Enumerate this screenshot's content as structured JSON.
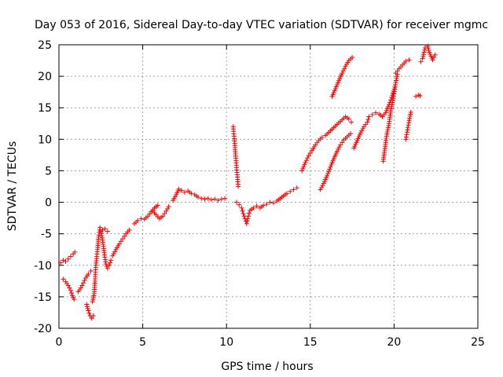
{
  "chart_data": {
    "type": "scatter",
    "title": "Day 053 of 2016, Sidereal Day-to-day VTEC variation (SDTVAR) for receiver mgmc",
    "xlabel": "GPS time / hours",
    "ylabel": "SDTVAR / TECUs",
    "xlim": [
      0,
      25
    ],
    "ylim": [
      -20,
      25
    ],
    "xticks": [
      "0",
      "5",
      "10",
      "15",
      "20",
      "25"
    ],
    "yticks": [
      "-20",
      "-15",
      "-10",
      "-5",
      "0",
      "5",
      "10",
      "15",
      "20",
      "25"
    ],
    "grid": true,
    "marker": "+",
    "marker_color": "#ff0000",
    "series": [
      {
        "segments": [
          [
            [
              0.1,
              -9.6
            ],
            [
              0.25,
              -9.2
            ],
            [
              0.4,
              -9.4
            ],
            [
              0.55,
              -9.0
            ],
            [
              0.7,
              -8.6
            ],
            [
              0.85,
              -8.2
            ],
            [
              0.95,
              -7.9
            ]
          ],
          [
            [
              0.25,
              -12.2
            ],
            [
              0.4,
              -12.6
            ],
            [
              0.55,
              -13.2
            ],
            [
              0.7,
              -14.0
            ],
            [
              0.8,
              -14.8
            ],
            [
              0.9,
              -15.4
            ]
          ],
          [
            [
              1.15,
              -14.2
            ],
            [
              1.3,
              -13.6
            ],
            [
              1.45,
              -12.8
            ],
            [
              1.6,
              -12.0
            ],
            [
              1.75,
              -11.4
            ],
            [
              1.9,
              -10.9
            ]
          ],
          [
            [
              1.65,
              -16.2
            ],
            [
              1.75,
              -17.2
            ],
            [
              1.85,
              -18.0
            ],
            [
              1.95,
              -18.4
            ],
            [
              2.05,
              -18.0
            ]
          ],
          [
            [
              2.0,
              -15.8
            ],
            [
              2.1,
              -14.5
            ],
            [
              2.15,
              -12.5
            ],
            [
              2.2,
              -10.0
            ],
            [
              2.3,
              -7.5
            ],
            [
              2.38,
              -5.2
            ],
            [
              2.45,
              -4.0
            ]
          ],
          [
            [
              2.5,
              -4.6
            ],
            [
              2.6,
              -6.0
            ],
            [
              2.7,
              -8.0
            ],
            [
              2.8,
              -9.8
            ],
            [
              2.9,
              -10.5
            ],
            [
              3.0,
              -10.0
            ],
            [
              3.1,
              -9.2
            ]
          ],
          [
            [
              2.6,
              -4.4
            ],
            [
              2.75,
              -4.2
            ],
            [
              2.9,
              -4.6
            ]
          ],
          [
            [
              3.2,
              -8.5
            ],
            [
              3.4,
              -7.5
            ],
            [
              3.6,
              -6.6
            ],
            [
              3.8,
              -5.8
            ],
            [
              4.0,
              -5.0
            ],
            [
              4.2,
              -4.4
            ]
          ],
          [
            [
              4.5,
              -3.4
            ],
            [
              4.7,
              -2.9
            ],
            [
              4.9,
              -2.6
            ],
            [
              5.1,
              -2.7
            ],
            [
              5.3,
              -2.2
            ],
            [
              5.5,
              -1.5
            ],
            [
              5.7,
              -0.9
            ],
            [
              5.9,
              -0.5
            ]
          ],
          [
            [
              5.6,
              -1.4
            ],
            [
              5.8,
              -2.0
            ],
            [
              6.0,
              -2.6
            ],
            [
              6.2,
              -2.2
            ],
            [
              6.4,
              -1.4
            ],
            [
              6.55,
              -0.7
            ]
          ],
          [
            [
              6.8,
              0.3
            ],
            [
              7.0,
              1.2
            ],
            [
              7.15,
              2.1
            ],
            [
              7.3,
              1.9
            ],
            [
              7.5,
              1.6
            ],
            [
              7.7,
              1.8
            ],
            [
              7.9,
              1.4
            ],
            [
              8.1,
              1.2
            ],
            [
              8.3,
              0.8
            ],
            [
              8.5,
              0.6
            ],
            [
              8.7,
              0.5
            ],
            [
              8.9,
              0.6
            ],
            [
              9.1,
              0.4
            ],
            [
              9.3,
              0.5
            ],
            [
              9.5,
              0.3
            ],
            [
              9.7,
              0.5
            ],
            [
              9.9,
              0.6
            ]
          ],
          [
            [
              10.4,
              12.0
            ],
            [
              10.45,
              10.5
            ],
            [
              10.5,
              9.0
            ],
            [
              10.55,
              7.0
            ],
            [
              10.6,
              5.5
            ],
            [
              10.65,
              4.0
            ],
            [
              10.7,
              2.5
            ]
          ],
          [
            [
              10.6,
              0.0
            ],
            [
              10.75,
              -0.4
            ],
            [
              10.9,
              -0.9
            ],
            [
              11.0,
              -1.8
            ],
            [
              11.1,
              -2.6
            ],
            [
              11.2,
              -3.4
            ],
            [
              11.3,
              -2.2
            ],
            [
              11.4,
              -1.3
            ],
            [
              11.6,
              -0.9
            ],
            [
              11.8,
              -0.6
            ],
            [
              12.0,
              -0.9
            ],
            [
              12.2,
              -0.5
            ],
            [
              12.4,
              -0.3
            ]
          ],
          [
            [
              12.6,
              0.0
            ],
            [
              12.8,
              -0.1
            ],
            [
              13.0,
              0.2
            ],
            [
              13.2,
              0.6
            ],
            [
              13.4,
              1.0
            ],
            [
              13.6,
              1.4
            ],
            [
              13.8,
              1.7
            ],
            [
              14.0,
              2.0
            ],
            [
              14.2,
              2.3
            ]
          ],
          [
            [
              14.5,
              5.0
            ],
            [
              14.7,
              6.3
            ],
            [
              14.9,
              7.4
            ],
            [
              15.1,
              8.2
            ],
            [
              15.3,
              9.1
            ],
            [
              15.5,
              9.8
            ],
            [
              15.7,
              10.3
            ],
            [
              15.9,
              10.6
            ],
            [
              16.1,
              11.1
            ],
            [
              16.3,
              11.6
            ],
            [
              16.5,
              12.1
            ],
            [
              16.7,
              12.6
            ],
            [
              16.9,
              13.1
            ],
            [
              17.1,
              13.6
            ],
            [
              17.3,
              13.2
            ],
            [
              17.45,
              12.7
            ]
          ],
          [
            [
              15.6,
              2.0
            ],
            [
              15.8,
              3.0
            ],
            [
              16.0,
              4.2
            ],
            [
              16.2,
              5.6
            ],
            [
              16.4,
              6.9
            ],
            [
              16.6,
              8.1
            ],
            [
              16.8,
              9.1
            ],
            [
              17.0,
              9.9
            ],
            [
              17.2,
              10.4
            ],
            [
              17.4,
              10.9
            ]
          ],
          [
            [
              16.3,
              16.8
            ],
            [
              16.5,
              18.0
            ],
            [
              16.7,
              19.3
            ],
            [
              16.9,
              20.5
            ],
            [
              17.1,
              21.6
            ],
            [
              17.3,
              22.5
            ],
            [
              17.5,
              23.0
            ]
          ],
          [
            [
              17.6,
              8.6
            ],
            [
              17.8,
              9.8
            ],
            [
              18.0,
              11.0
            ],
            [
              18.2,
              12.0
            ],
            [
              18.4,
              12.7
            ],
            [
              18.5,
              13.6
            ],
            [
              18.7,
              13.9
            ],
            [
              18.9,
              14.2
            ],
            [
              19.1,
              14.0
            ],
            [
              19.3,
              13.6
            ],
            [
              19.5,
              14.2
            ],
            [
              19.7,
              15.5
            ],
            [
              19.9,
              17.0
            ],
            [
              20.05,
              18.3
            ]
          ],
          [
            [
              19.35,
              6.5
            ],
            [
              19.45,
              8.5
            ],
            [
              19.55,
              10.5
            ],
            [
              19.7,
              12.5
            ],
            [
              19.8,
              14.5
            ],
            [
              19.95,
              16.5
            ],
            [
              20.1,
              19.0
            ],
            [
              20.2,
              20.3
            ]
          ],
          [
            [
              20.1,
              20.5
            ],
            [
              20.3,
              21.2
            ],
            [
              20.5,
              21.8
            ],
            [
              20.7,
              22.4
            ],
            [
              20.9,
              22.6
            ]
          ],
          [
            [
              20.7,
              10.0
            ],
            [
              20.8,
              11.5
            ],
            [
              20.9,
              13.0
            ],
            [
              21.0,
              14.3
            ]
          ],
          [
            [
              21.3,
              16.8
            ],
            [
              21.45,
              17.0
            ],
            [
              21.55,
              16.9
            ]
          ],
          [
            [
              21.6,
              22.3
            ],
            [
              21.7,
              22.8
            ],
            [
              21.85,
              24.5
            ],
            [
              22.0,
              24.8
            ],
            [
              22.1,
              23.8
            ],
            [
              22.3,
              22.6
            ],
            [
              22.45,
              23.4
            ]
          ]
        ]
      }
    ]
  }
}
